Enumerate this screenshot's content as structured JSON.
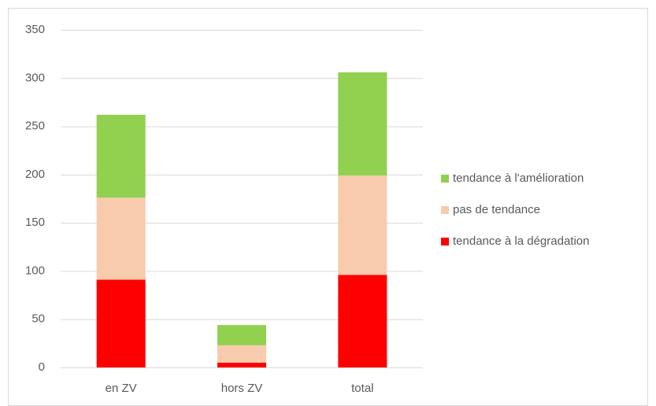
{
  "chart_data": {
    "type": "stacked_bar",
    "categories": [
      "en ZV",
      "hors ZV",
      "total"
    ],
    "series": [
      {
        "name": "tendance à la dégradation",
        "color": "#ff0000",
        "values": [
          91,
          5,
          96
        ]
      },
      {
        "name": "pas de tendance",
        "color": "#f8cbad",
        "values": [
          85,
          18,
          103
        ]
      },
      {
        "name": "tendance à l'amélioration",
        "color": "#92d050",
        "values": [
          86,
          21,
          107
        ]
      }
    ],
    "ylim": [
      0,
      350
    ],
    "yticks": [
      0,
      50,
      100,
      150,
      200,
      250,
      300,
      350
    ],
    "grid": true,
    "legend": "right"
  }
}
